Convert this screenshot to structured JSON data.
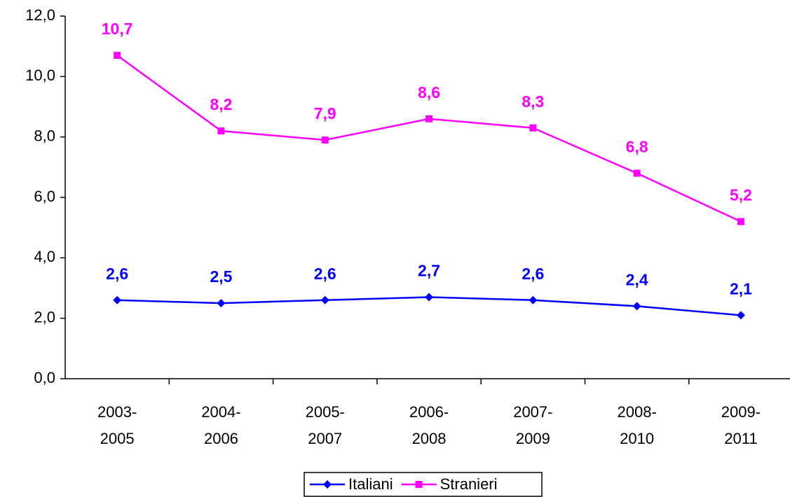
{
  "chart_data": {
    "type": "line",
    "categories": [
      "2003-2005",
      "2004-2006",
      "2005-2007",
      "2006-2008",
      "2007-2009",
      "2008-2010",
      "2009-2011"
    ],
    "series": [
      {
        "name": "Italiani",
        "color": "#0000ff",
        "marker": "diamond",
        "values": [
          2.6,
          2.5,
          2.6,
          2.7,
          2.6,
          2.4,
          2.1
        ],
        "value_labels": [
          "2,6",
          "2,5",
          "2,6",
          "2,7",
          "2,6",
          "2,4",
          "2,1"
        ]
      },
      {
        "name": "Stranieri",
        "color": "#ff00ff",
        "marker": "square",
        "values": [
          10.7,
          8.2,
          7.9,
          8.6,
          8.3,
          6.8,
          5.2
        ],
        "value_labels": [
          "10,7",
          "8,2",
          "7,9",
          "8,6",
          "8,3",
          "6,8",
          "5,2"
        ]
      }
    ],
    "ylim": [
      0,
      12
    ],
    "yticks": [
      {
        "value": 0,
        "label": "0,0"
      },
      {
        "value": 2,
        "label": "2,0"
      },
      {
        "value": 4,
        "label": "4,0"
      },
      {
        "value": 6,
        "label": "6,0"
      },
      {
        "value": 8,
        "label": "8,0"
      },
      {
        "value": 10,
        "label": "10,0"
      },
      {
        "value": 12,
        "label": "12,0"
      }
    ],
    "grid": false,
    "legend": "bottom"
  }
}
